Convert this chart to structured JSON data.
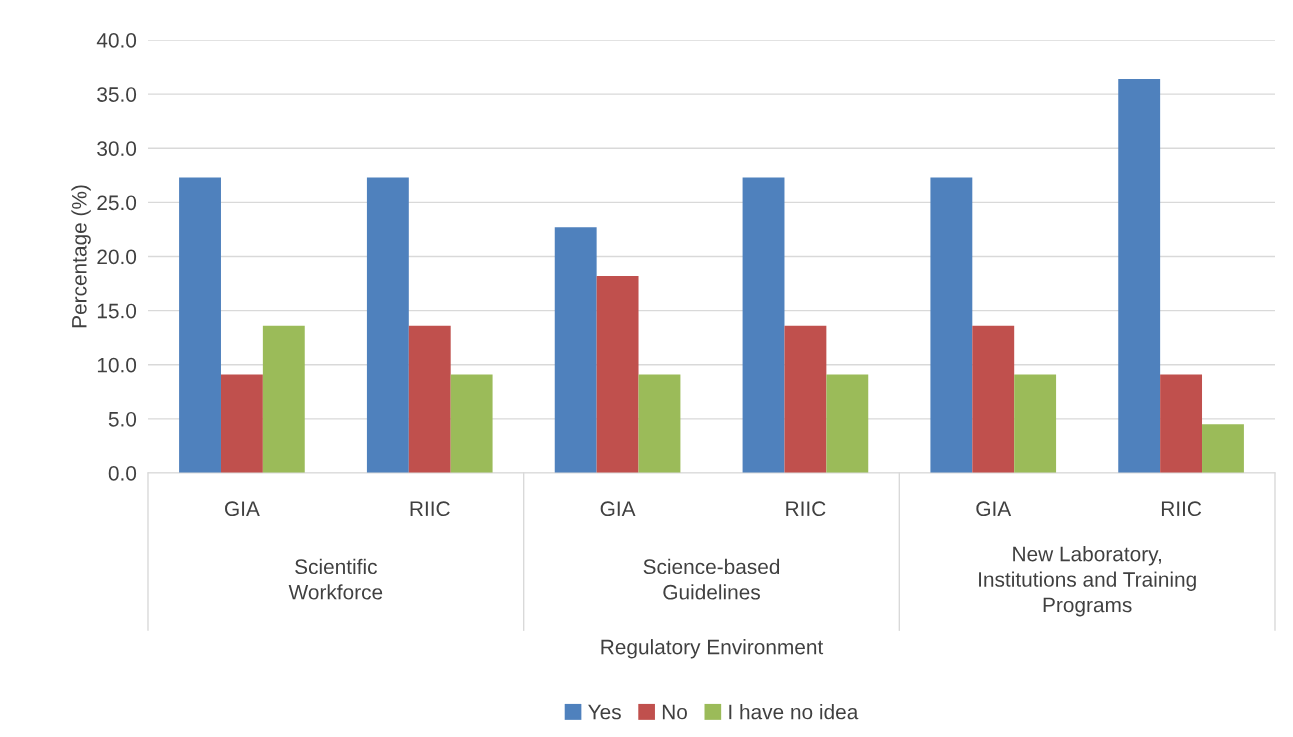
{
  "chart_data": {
    "type": "bar",
    "ylabel": "Percentage (%)",
    "categories": [
      "GIA",
      "RIIC",
      "GIA",
      "RIIC",
      "GIA",
      "RIIC"
    ],
    "annotations": [
      "Scientific\nWorkforce",
      "Science-based\nGuidelines",
      "New Laboratory,\nInstitutions and Training\nPrograms",
      "Regulatory Environment"
    ],
    "series": [
      {
        "name": "Yes",
        "color": "#4f81bd",
        "values": [
          27.3,
          27.3,
          22.7,
          27.3,
          27.3,
          36.4
        ]
      },
      {
        "name": "No",
        "color": "#c0504d",
        "values": [
          9.1,
          13.6,
          18.2,
          13.6,
          13.6,
          9.1
        ]
      },
      {
        "name": "I have no idea",
        "color": "#9bbb59",
        "values": [
          13.6,
          9.1,
          9.1,
          9.1,
          9.1,
          4.5
        ]
      }
    ],
    "ylim": [
      0,
      40
    ],
    "yticks": [
      {
        "value": 0,
        "label": "0.0"
      },
      {
        "value": 5,
        "label": "5.0"
      },
      {
        "value": 10,
        "label": "10.0"
      },
      {
        "value": 15,
        "label": "15.0"
      },
      {
        "value": 20,
        "label": "20.0"
      },
      {
        "value": 25,
        "label": "25.0"
      },
      {
        "value": 30,
        "label": "30.0"
      },
      {
        "value": 35,
        "label": "35.0"
      },
      {
        "value": 40,
        "label": "40.0"
      }
    ],
    "grid": "y",
    "legend": "bottom"
  }
}
